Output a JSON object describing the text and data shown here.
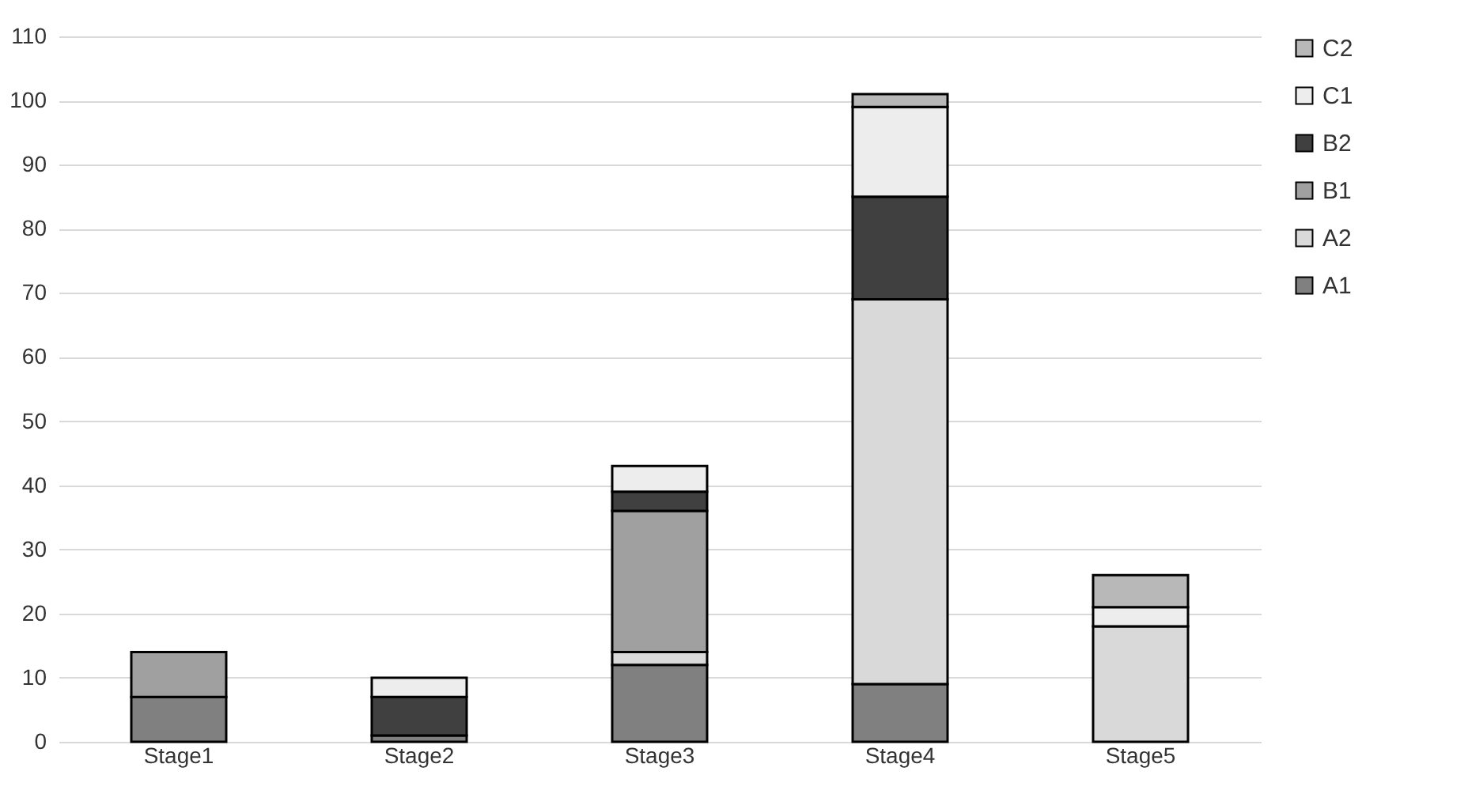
{
  "chart_data": {
    "type": "bar",
    "stacked": true,
    "categories": [
      "Stage1",
      "Stage2",
      "Stage3",
      "Stage4",
      "Stage5"
    ],
    "series": [
      {
        "name": "A1",
        "color": "#808080",
        "values": [
          7,
          1,
          12,
          9,
          null
        ]
      },
      {
        "name": "A2",
        "color": "#d9d9d9",
        "values": [
          null,
          null,
          2,
          60,
          18
        ]
      },
      {
        "name": "B1",
        "color": "#a0a0a0",
        "values": [
          7,
          null,
          22,
          null,
          null
        ]
      },
      {
        "name": "B2",
        "color": "#404040",
        "values": [
          null,
          6,
          3,
          16,
          null
        ]
      },
      {
        "name": "C1",
        "color": "#ededed",
        "values": [
          null,
          3,
          4,
          14,
          3
        ]
      },
      {
        "name": "C2",
        "color": "#b8b8b8",
        "values": [
          null,
          null,
          null,
          2,
          5
        ]
      }
    ],
    "ylim": [
      0,
      110
    ],
    "yticks": [
      0,
      10,
      20,
      30,
      40,
      50,
      60,
      70,
      80,
      90,
      100,
      110
    ],
    "grid": "y",
    "legend": "right"
  }
}
